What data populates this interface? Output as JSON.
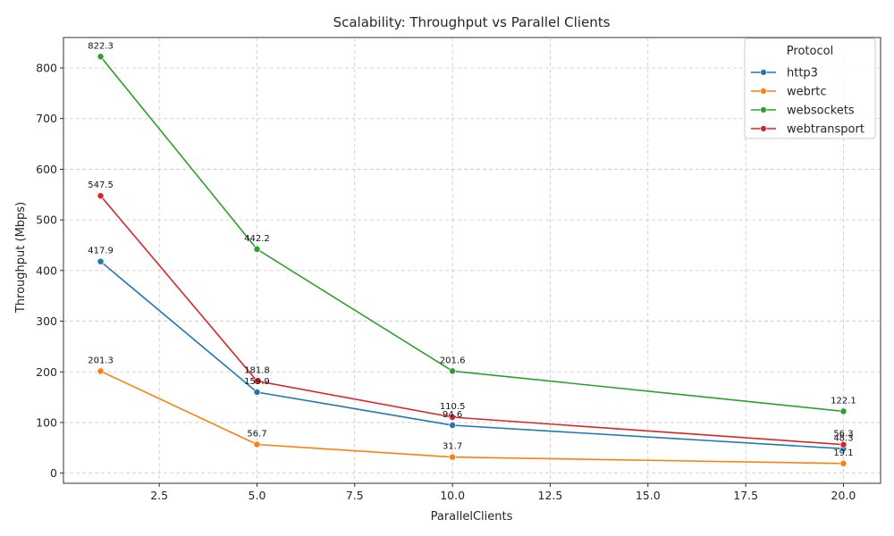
{
  "chart_data": {
    "type": "line",
    "title": "Scalability: Throughput vs Parallel Clients",
    "xlabel": "ParallelClients",
    "ylabel": "Throughput (Mbps)",
    "xlim": [
      0.05,
      20.95
    ],
    "ylim": [
      -20,
      860
    ],
    "xticks": [
      2.5,
      5.0,
      7.5,
      10.0,
      12.5,
      15.0,
      17.5,
      20.0
    ],
    "xtick_labels": [
      "2.5",
      "5.0",
      "7.5",
      "10.0",
      "12.5",
      "15.0",
      "17.5",
      "20.0"
    ],
    "yticks": [
      0,
      100,
      200,
      300,
      400,
      500,
      600,
      700,
      800
    ],
    "ytick_labels": [
      "0",
      "100",
      "200",
      "300",
      "400",
      "500",
      "600",
      "700",
      "800"
    ],
    "grid": true,
    "legend": {
      "title": "Protocol",
      "placement": "top-right"
    },
    "x": [
      1,
      5,
      10,
      20
    ],
    "series": [
      {
        "name": "http3",
        "color": "#1f77b4",
        "values": [
          417.9,
          159.9,
          94.6,
          48.3
        ],
        "labels": [
          "417.9",
          "159.9",
          "94.6",
          "48.3"
        ]
      },
      {
        "name": "webrtc",
        "color": "#ff7f0e",
        "values": [
          201.3,
          56.7,
          31.7,
          19.1
        ],
        "labels": [
          "201.3",
          "56.7",
          "31.7",
          "19.1"
        ]
      },
      {
        "name": "websockets",
        "color": "#2ca02c",
        "values": [
          822.3,
          442.2,
          201.6,
          122.1
        ],
        "labels": [
          "822.3",
          "442.2",
          "201.6",
          "122.1"
        ]
      },
      {
        "name": "webtransport",
        "color": "#d62728",
        "values": [
          547.5,
          181.8,
          110.5,
          56.3
        ],
        "labels": [
          "547.5",
          "181.8",
          "110.5",
          "56.3"
        ]
      }
    ]
  }
}
